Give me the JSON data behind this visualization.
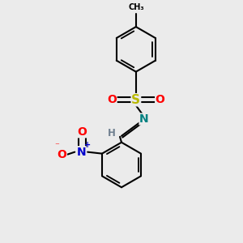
{
  "bg_color": "#ebebeb",
  "bond_color": "#000000",
  "bond_width": 1.5,
  "S_color": "#b8b800",
  "O_color": "#ff0000",
  "N_color": "#0000cc",
  "N_imine_color": "#008080",
  "figsize": [
    3.0,
    3.0
  ],
  "dpi": 100,
  "xlim": [
    -1.3,
    1.3
  ],
  "ylim": [
    -1.55,
    1.45
  ]
}
